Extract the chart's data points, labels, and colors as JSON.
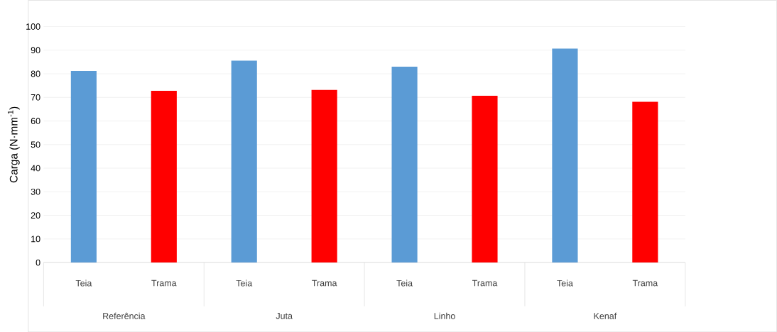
{
  "chart_data": {
    "type": "bar",
    "ylabel": "Carga (N·mm$^{-1}$)",
    "categories": [
      "Referência",
      "Juta",
      "Linho",
      "Kenaf"
    ],
    "series": [
      {
        "name": "Teia",
        "color": "#5b9bd5",
        "values": [
          81.2,
          85.6,
          83.0,
          90.7
        ]
      },
      {
        "name": "Trama",
        "color": "#ff0000",
        "values": [
          72.8,
          73.2,
          70.7,
          68.1
        ]
      }
    ],
    "ylim": [
      0,
      100
    ],
    "yticks": [
      0,
      10,
      20,
      30,
      40,
      50,
      60,
      70,
      80,
      90,
      100
    ],
    "grid": "y"
  }
}
